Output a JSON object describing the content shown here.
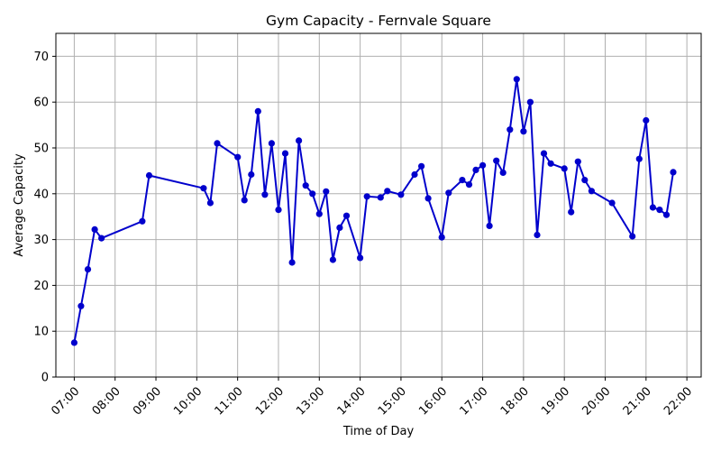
{
  "chart_data": {
    "type": "line",
    "title": "Gym Capacity - Fernvale Square",
    "xlabel": "Time of Day",
    "ylabel": "Average Capacity",
    "ylim": [
      0,
      75
    ],
    "y_ticks": [
      0,
      10,
      20,
      30,
      40,
      50,
      60,
      70
    ],
    "x_ticks": [
      "07:00",
      "08:00",
      "09:00",
      "10:00",
      "11:00",
      "12:00",
      "13:00",
      "14:00",
      "15:00",
      "16:00",
      "17:00",
      "18:00",
      "19:00",
      "20:00",
      "21:00",
      "22:00"
    ],
    "grid": true,
    "line_color": "#0000cc",
    "series": [
      {
        "x": [
          "07:00",
          "07:10",
          "07:20",
          "07:30",
          "07:40",
          "08:40",
          "08:50",
          "10:10",
          "10:20",
          "10:30",
          "11:00",
          "11:10",
          "11:20",
          "11:30",
          "11:40",
          "11:50",
          "12:00",
          "12:10",
          "12:20",
          "12:30",
          "12:40",
          "12:50",
          "13:00",
          "13:10",
          "13:20",
          "13:30",
          "13:40",
          "14:00",
          "14:10",
          "14:30",
          "14:40",
          "15:00",
          "15:20",
          "15:30",
          "15:40",
          "16:00",
          "16:10",
          "16:30",
          "16:40",
          "16:50",
          "17:00",
          "17:10",
          "17:20",
          "17:30",
          "17:40",
          "17:50",
          "18:00",
          "18:10",
          "18:20",
          "18:30",
          "18:40",
          "19:00",
          "19:10",
          "19:20",
          "19:30",
          "19:40",
          "20:10",
          "20:40",
          "20:50",
          "21:00",
          "21:10",
          "21:20",
          "21:30",
          "21:40"
        ],
        "values": [
          7.5,
          15.5,
          23.5,
          32.2,
          30.3,
          34.0,
          44.0,
          41.2,
          38.0,
          51.0,
          48.0,
          38.6,
          44.2,
          58.0,
          39.8,
          51.0,
          36.5,
          48.8,
          25.0,
          51.6,
          41.8,
          40.0,
          35.6,
          40.5,
          25.6,
          32.6,
          35.2,
          26.0,
          39.4,
          39.2,
          40.6,
          39.8,
          44.2,
          46.0,
          39.0,
          30.5,
          40.2,
          43.0,
          42.0,
          45.2,
          46.2,
          33.0,
          47.2,
          44.6,
          54.0,
          65.0,
          53.6,
          60.0,
          31.0,
          48.8,
          46.6,
          45.5,
          36.0,
          47.0,
          43.0,
          40.6,
          38.0,
          30.7,
          47.6,
          56.0,
          37.0,
          36.5,
          35.4,
          44.7
        ]
      }
    ]
  }
}
